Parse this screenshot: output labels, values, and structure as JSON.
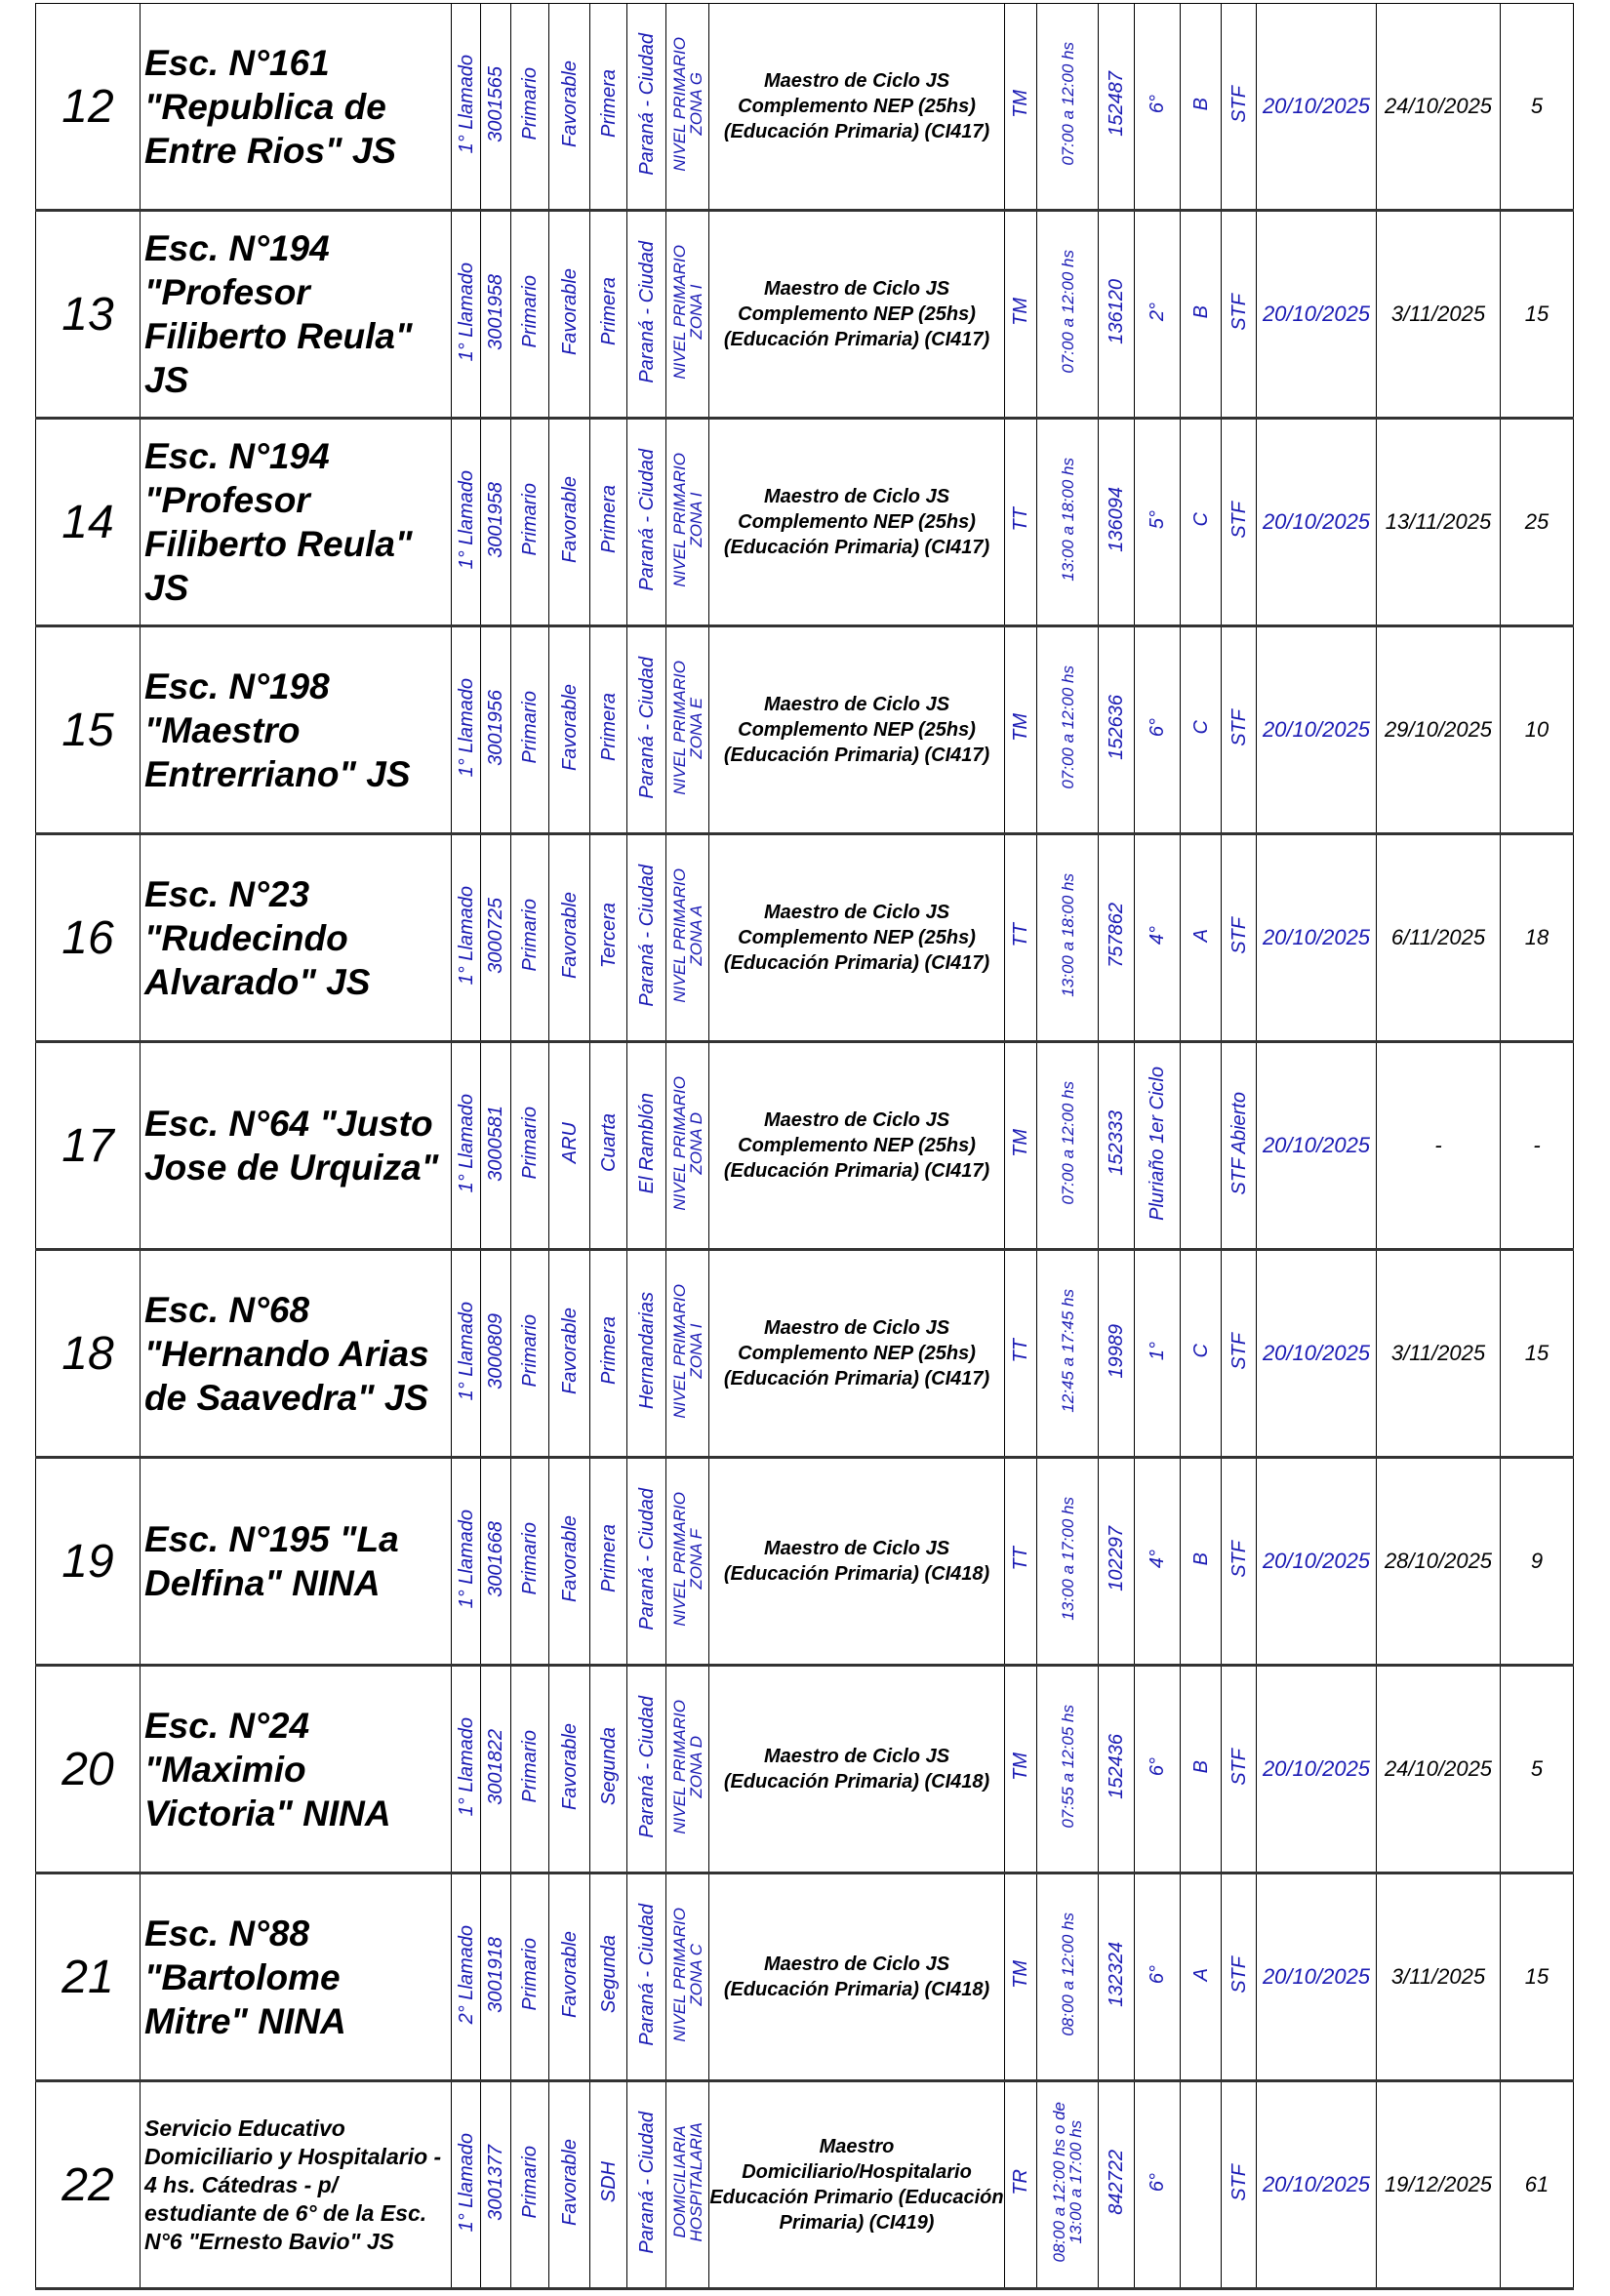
{
  "rows": [
    {
      "num": "12",
      "name": "Esc. N°161 \"Republica de Entre Rios\" JS",
      "llamado": "1° Llamado",
      "code": "3001565",
      "level": "Primario",
      "zone_type": "Favorable",
      "category": "Primera",
      "city": "Paraná - Ciudad",
      "nivel": "NIVEL PRIMARIO\nZONA G",
      "cargo": "Maestro de Ciclo JS Complemento NEP (25hs) (Educación Primaria) (CI417)",
      "turno": "TM",
      "horario": "07:00 a 12:00 hs",
      "id": "152487",
      "grado": "6°",
      "seccion": "B",
      "tipo": "STF",
      "fecha_desde": "20/10/2025",
      "fecha_hasta": "24/10/2025",
      "dias": "5"
    },
    {
      "num": "13",
      "name": "Esc. N°194 \"Profesor Filiberto Reula\" JS",
      "llamado": "1° Llamado",
      "code": "3001958",
      "level": "Primario",
      "zone_type": "Favorable",
      "category": "Primera",
      "city": "Paraná - Ciudad",
      "nivel": "NIVEL PRIMARIO\nZONA I",
      "cargo": "Maestro de Ciclo JS Complemento NEP (25hs) (Educación Primaria) (CI417)",
      "turno": "TM",
      "horario": "07:00 a 12:00 hs",
      "id": "136120",
      "grado": "2°",
      "seccion": "B",
      "tipo": "STF",
      "fecha_desde": "20/10/2025",
      "fecha_hasta": "3/11/2025",
      "dias": "15"
    },
    {
      "num": "14",
      "name": "Esc. N°194 \"Profesor Filiberto Reula\" JS",
      "llamado": "1° Llamado",
      "code": "3001958",
      "level": "Primario",
      "zone_type": "Favorable",
      "category": "Primera",
      "city": "Paraná - Ciudad",
      "nivel": "NIVEL PRIMARIO\nZONA I",
      "cargo": "Maestro de Ciclo JS Complemento NEP (25hs) (Educación Primaria) (CI417)",
      "turno": "TT",
      "horario": "13:00 a 18:00 hs",
      "id": "136094",
      "grado": "5°",
      "seccion": "C",
      "tipo": "STF",
      "fecha_desde": "20/10/2025",
      "fecha_hasta": "13/11/2025",
      "dias": "25"
    },
    {
      "num": "15",
      "name": "Esc. N°198 \"Maestro Entrerriano\" JS",
      "llamado": "1° Llamado",
      "code": "3001956",
      "level": "Primario",
      "zone_type": "Favorable",
      "category": "Primera",
      "city": "Paraná - Ciudad",
      "nivel": "NIVEL PRIMARIO\nZONA E",
      "cargo": "Maestro de Ciclo JS Complemento NEP (25hs) (Educación Primaria) (CI417)",
      "turno": "TM",
      "horario": "07:00 a 12:00 hs",
      "id": "152636",
      "grado": "6°",
      "seccion": "C",
      "tipo": "STF",
      "fecha_desde": "20/10/2025",
      "fecha_hasta": "29/10/2025",
      "dias": "10"
    },
    {
      "num": "16",
      "name": "Esc. N°23 \"Rudecindo Alvarado\" JS",
      "llamado": "1° Llamado",
      "code": "3000725",
      "level": "Primario",
      "zone_type": "Favorable",
      "category": "Tercera",
      "city": "Paraná - Ciudad",
      "nivel": "NIVEL PRIMARIO\nZONA A",
      "cargo": "Maestro de Ciclo JS Complemento NEP (25hs) (Educación Primaria) (CI417)",
      "turno": "TT",
      "horario": "13:00 a 18:00 hs",
      "id": "757862",
      "grado": "4°",
      "seccion": "A",
      "tipo": "STF",
      "fecha_desde": "20/10/2025",
      "fecha_hasta": "6/11/2025",
      "dias": "18"
    },
    {
      "num": "17",
      "name": "Esc. N°64 \"Justo Jose de Urquiza\"",
      "llamado": "1° Llamado",
      "code": "3000581",
      "level": "Primario",
      "zone_type": "ARU",
      "category": "Cuarta",
      "city": "El Ramblón",
      "nivel": "NIVEL PRIMARIO\nZONA D",
      "cargo": "Maestro de Ciclo JS Complemento NEP (25hs) (Educación Primaria) (CI417)",
      "turno": "TM",
      "horario": "07:00 a 12:00 hs",
      "id": "152333",
      "grado": "Pluriaño  1er Ciclo",
      "seccion": "",
      "tipo": "STF Abierto",
      "fecha_desde": "20/10/2025",
      "fecha_hasta": "-",
      "dias": "-"
    },
    {
      "num": "18",
      "name": "Esc. N°68 \"Hernando Arias de Saavedra\" JS",
      "llamado": "1° Llamado",
      "code": "3000809",
      "level": "Primario",
      "zone_type": "Favorable",
      "category": "Primera",
      "city": "Hernandarias",
      "nivel": "NIVEL PRIMARIO\nZONA I",
      "cargo": "Maestro de Ciclo JS Complemento NEP (25hs) (Educación Primaria) (CI417)",
      "turno": "TT",
      "horario": "12:45 a 17:45 hs",
      "id": "19989",
      "grado": "1°",
      "seccion": "C",
      "tipo": "STF",
      "fecha_desde": "20/10/2025",
      "fecha_hasta": "3/11/2025",
      "dias": "15"
    },
    {
      "num": "19",
      "name": "Esc. N°195 \"La Delfina\" NINA",
      "llamado": "1° Llamado",
      "code": "3001668",
      "level": "Primario",
      "zone_type": "Favorable",
      "category": "Primera",
      "city": "Paraná - Ciudad",
      "nivel": "NIVEL PRIMARIO\nZONA F",
      "cargo": "Maestro de Ciclo JS (Educación Primaria) (CI418)",
      "turno": "TT",
      "horario": "13:00 a 17:00 hs",
      "id": "102297",
      "grado": "4°",
      "seccion": "B",
      "tipo": "STF",
      "fecha_desde": "20/10/2025",
      "fecha_hasta": "28/10/2025",
      "dias": "9"
    },
    {
      "num": "20",
      "name": "Esc. N°24 \"Maximio Victoria\" NINA",
      "llamado": "1° Llamado",
      "code": "3001822",
      "level": "Primario",
      "zone_type": "Favorable",
      "category": "Segunda",
      "city": "Paraná - Ciudad",
      "nivel": "NIVEL PRIMARIO\nZONA D",
      "cargo": "Maestro de Ciclo JS (Educación Primaria) (CI418)",
      "turno": "TM",
      "horario": "07:55 a 12:05 hs",
      "id": "152436",
      "grado": "6°",
      "seccion": "B",
      "tipo": "STF",
      "fecha_desde": "20/10/2025",
      "fecha_hasta": "24/10/2025",
      "dias": "5"
    },
    {
      "num": "21",
      "name": "Esc. N°88 \"Bartolome Mitre\" NINA",
      "llamado": "2° Llamado",
      "code": "3001918",
      "level": "Primario",
      "zone_type": "Favorable",
      "category": "Segunda",
      "city": "Paraná - Ciudad",
      "nivel": "NIVEL PRIMARIO\nZONA C",
      "cargo": "Maestro de Ciclo JS (Educación Primaria) (CI418)",
      "turno": "TM",
      "horario": "08:00 a 12:00 hs",
      "id": "132324",
      "grado": "6°",
      "seccion": "A",
      "tipo": "STF",
      "fecha_desde": "20/10/2025",
      "fecha_hasta": "3/11/2025",
      "dias": "15"
    },
    {
      "num": "22",
      "name": "Servicio Educativo Domiciliario y Hospitalario -  4 hs. Cátedras - p/ estudiante de 6° de la Esc. N°6 \"Ernesto Bavio\" JS",
      "small": true,
      "llamado": "1° Llamado",
      "code": "3001377",
      "level": "Primario",
      "zone_type": "Favorable",
      "category": "SDH",
      "city": "Paraná - Ciudad",
      "nivel": "DOMICILIARIA\nHOSPITALARIA",
      "cargo": "Maestro Domiciliario/Hospitalario Educación Primario (Educación Primaria) (CI419)",
      "turno": "TR",
      "horario": "08:00 a 12:00 hs o de\n13:00 a 17:00 hs",
      "id": "842722",
      "grado": "6°",
      "seccion": "",
      "tipo": "STF",
      "fecha_desde": "20/10/2025",
      "fecha_hasta": "19/12/2025",
      "dias": "61"
    }
  ]
}
